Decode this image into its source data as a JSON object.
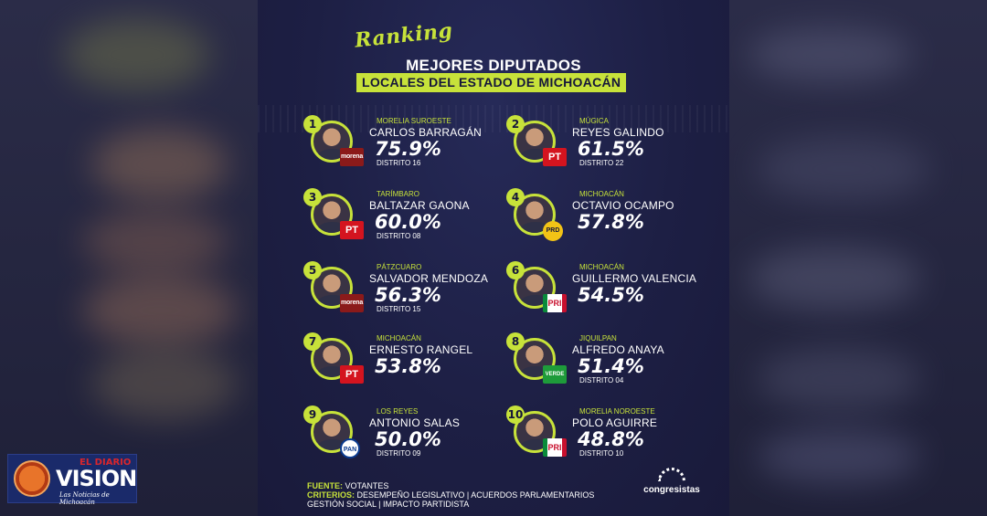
{
  "poster": {
    "ranking_script": "Ranking",
    "title_line1": "MEJORES DIPUTADOS",
    "title_line2": "LOCALES DEL ESTADO DE MICHOACÁN"
  },
  "entries": [
    {
      "rank": "1",
      "region": "MORELIA SUROESTE",
      "name": "CARLOS BARRAGÁN",
      "percent": "75.9%",
      "district": "DISTRITO 16",
      "party": "morena",
      "party_label": "morena"
    },
    {
      "rank": "2",
      "region": "MÚGICA",
      "name": "REYES GALINDO",
      "percent": "61.5%",
      "district": "DISTRITO 22",
      "party": "pt",
      "party_label": "PT"
    },
    {
      "rank": "3",
      "region": "TARÍMBARO",
      "name": "BALTAZAR GAONA",
      "percent": "60.0%",
      "district": "DISTRITO 08",
      "party": "pt",
      "party_label": "PT"
    },
    {
      "rank": "4",
      "region": "MICHOACÁN",
      "name": "OCTAVIO OCAMPO",
      "percent": "57.8%",
      "district": "",
      "party": "prd",
      "party_label": "PRD"
    },
    {
      "rank": "5",
      "region": "PÁTZCUARO",
      "name": "SALVADOR MENDOZA",
      "percent": "56.3%",
      "district": "DISTRITO 15",
      "party": "morena",
      "party_label": "morena"
    },
    {
      "rank": "6",
      "region": "MICHOACÁN",
      "name": "GUILLERMO VALENCIA",
      "percent": "54.5%",
      "district": "",
      "party": "pri",
      "party_label": "PRI"
    },
    {
      "rank": "7",
      "region": "MICHOACÁN",
      "name": "ERNESTO RANGEL",
      "percent": "53.8%",
      "district": "",
      "party": "pt",
      "party_label": "PT"
    },
    {
      "rank": "8",
      "region": "JIQUILPAN",
      "name": "ALFREDO ANAYA",
      "percent": "51.4%",
      "district": "DISTRITO 04",
      "party": "verde",
      "party_label": "VERDE"
    },
    {
      "rank": "9",
      "region": "LOS REYES",
      "name": "ANTONIO SALAS",
      "percent": "50.0%",
      "district": "DISTRITO 09",
      "party": "pan",
      "party_label": "PAN"
    },
    {
      "rank": "10",
      "region": "MORELIA NOROESTE",
      "name": "POLO AGUIRRE",
      "percent": "48.8%",
      "district": "DISTRITO 10",
      "party": "pri",
      "party_label": "PRI"
    }
  ],
  "footer": {
    "fuente_label": "FUENTE:",
    "fuente_value": "VOTANTES",
    "criterios_label": "CRITERIOS:",
    "criterios_value": "DESEMPEÑO LEGISLATIVO | ACUERDOS PARLAMENTARIOS",
    "criterios_line2": "GESTIÓN SOCIAL | IMPACTO PARTIDISTA"
  },
  "brand": {
    "name": "congresistas"
  },
  "logo": {
    "line1": "EL DIARIO",
    "line2": "VISION",
    "tagline": "Las Noticias de Michoacán"
  },
  "colors": {
    "accent": "#c7e23a",
    "background": "#1d1f44",
    "text": "#ffffff"
  }
}
